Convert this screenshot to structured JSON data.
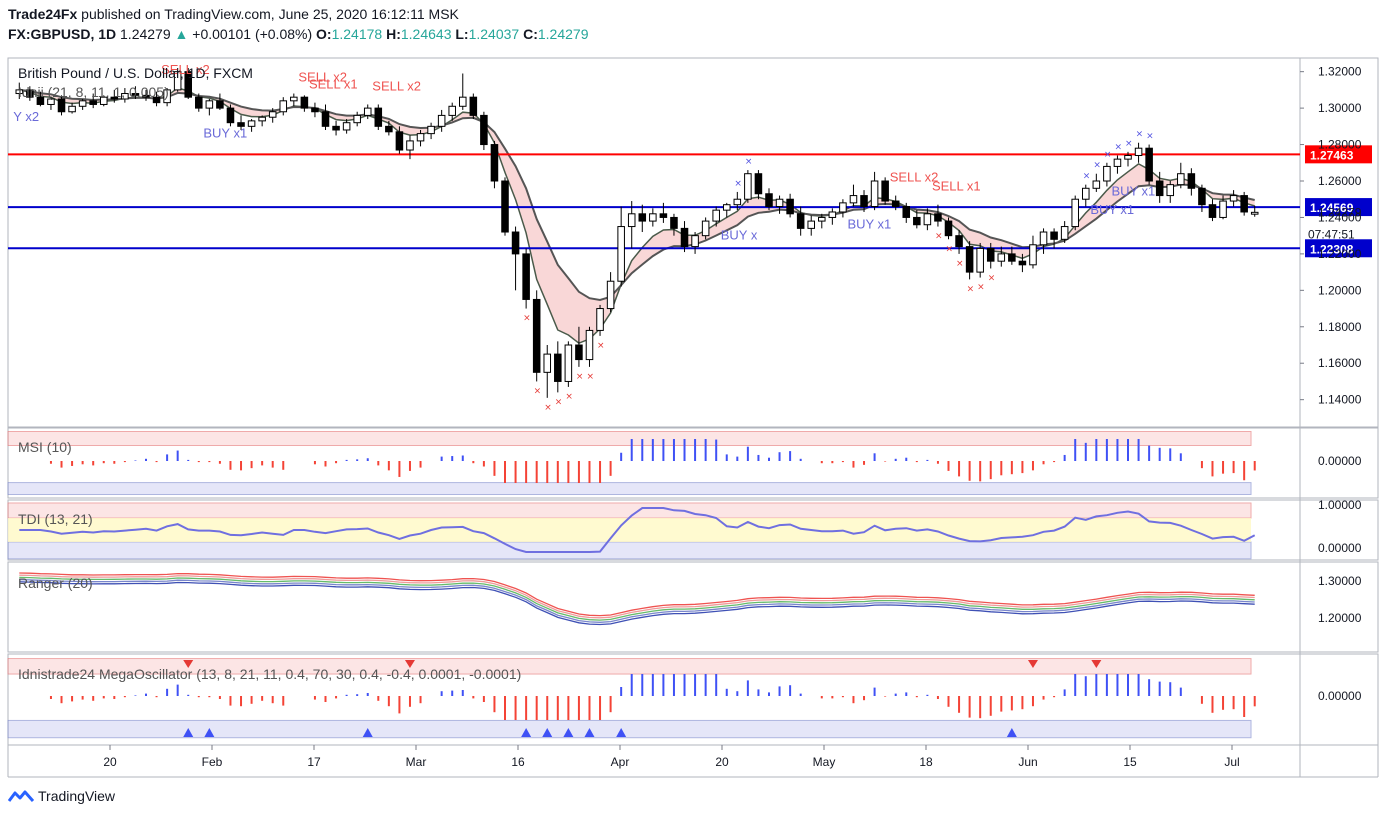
{
  "header": {
    "publisher": "Trade24Fx",
    "published_text": "published on TradingView.com, June 25, 2020 16:12:11 MSK",
    "symbol": "FX:GBPUSD, 1D",
    "last": "1.24279",
    "change": "+0.00101 (+0.08%)",
    "open_label": "O:",
    "open": "1.24178",
    "high_label": "H:",
    "high": "1.24643",
    "low_label": "L:",
    "low": "1.24037",
    "close_label": "C:",
    "close": "1.24279"
  },
  "footer": {
    "brand": "TradingView"
  },
  "colors": {
    "bull": "#ffffff",
    "bear": "#000000",
    "red_line": "#ff0000",
    "blue_line": "#0000cc",
    "sell_text": "#ef5350",
    "buy_text": "#6a6ad8",
    "ribbon_fill_bear": "#f7c6c6",
    "ribbon_fill_bull": "#c8e6c9",
    "ribbon_fill_blue": "#cfd0f5"
  },
  "chart_data": {
    "type": "candlestick",
    "main": {
      "title": "British Pound / U.S. Dollar, 1D, FXCM",
      "indicator_label": "Idnii (21, 8, 11, 1, 0.005)",
      "ylim": [
        1.125,
        1.3275
      ],
      "y_ticks": [
        "1.32000",
        "1.30000",
        "1.28000",
        "1.26000",
        "1.24000",
        "1.22000",
        "1.20000",
        "1.18000",
        "1.16000",
        "1.14000"
      ],
      "x_ticks": [
        "20",
        "Feb",
        "17",
        "Mar",
        "16",
        "Apr",
        "20",
        "May",
        "18",
        "Jun",
        "15",
        "Jul"
      ],
      "horizontal_lines": [
        {
          "value": 1.27463,
          "label": "1.27463",
          "color": "#ff0000"
        },
        {
          "value": 1.24569,
          "label": "1.24569",
          "color": "#0000cc"
        },
        {
          "value": 1.22308,
          "label": "1.22308",
          "color": "#0000cc"
        }
      ],
      "price_label": "1.24279",
      "countdown": "07:47:51",
      "candles": [
        [
          1.308,
          1.314,
          1.305,
          1.31
        ],
        [
          1.31,
          1.312,
          1.304,
          1.306
        ],
        [
          1.306,
          1.309,
          1.301,
          1.302
        ],
        [
          1.302,
          1.306,
          1.299,
          1.305
        ],
        [
          1.305,
          1.307,
          1.296,
          1.298
        ],
        [
          1.298,
          1.303,
          1.297,
          1.301
        ],
        [
          1.301,
          1.305,
          1.299,
          1.304
        ],
        [
          1.304,
          1.308,
          1.3,
          1.302
        ],
        [
          1.302,
          1.307,
          1.301,
          1.306
        ],
        [
          1.306,
          1.31,
          1.303,
          1.305
        ],
        [
          1.305,
          1.311,
          1.303,
          1.308
        ],
        [
          1.308,
          1.312,
          1.305,
          1.307
        ],
        [
          1.307,
          1.31,
          1.304,
          1.306
        ],
        [
          1.306,
          1.309,
          1.301,
          1.303
        ],
        [
          1.303,
          1.311,
          1.301,
          1.31
        ],
        [
          1.31,
          1.322,
          1.309,
          1.32
        ],
        [
          1.32,
          1.322,
          1.305,
          1.306
        ],
        [
          1.306,
          1.308,
          1.298,
          1.3
        ],
        [
          1.3,
          1.305,
          1.296,
          1.304
        ],
        [
          1.304,
          1.308,
          1.299,
          1.3
        ],
        [
          1.3,
          1.302,
          1.29,
          1.292
        ],
        [
          1.292,
          1.296,
          1.288,
          1.29
        ],
        [
          1.29,
          1.294,
          1.287,
          1.293
        ],
        [
          1.293,
          1.296,
          1.29,
          1.295
        ],
        [
          1.295,
          1.3,
          1.292,
          1.298
        ],
        [
          1.298,
          1.306,
          1.296,
          1.304
        ],
        [
          1.304,
          1.308,
          1.301,
          1.306
        ],
        [
          1.306,
          1.307,
          1.298,
          1.3
        ],
        [
          1.3,
          1.303,
          1.295,
          1.298
        ],
        [
          1.298,
          1.302,
          1.288,
          1.29
        ],
        [
          1.29,
          1.293,
          1.285,
          1.288
        ],
        [
          1.288,
          1.294,
          1.286,
          1.292
        ],
        [
          1.292,
          1.298,
          1.29,
          1.296
        ],
        [
          1.296,
          1.302,
          1.294,
          1.3
        ],
        [
          1.3,
          1.302,
          1.288,
          1.29
        ],
        [
          1.29,
          1.293,
          1.285,
          1.287
        ],
        [
          1.287,
          1.29,
          1.275,
          1.277
        ],
        [
          1.277,
          1.285,
          1.272,
          1.282
        ],
        [
          1.282,
          1.288,
          1.279,
          1.286
        ],
        [
          1.286,
          1.292,
          1.283,
          1.29
        ],
        [
          1.29,
          1.299,
          1.287,
          1.296
        ],
        [
          1.296,
          1.303,
          1.293,
          1.301
        ],
        [
          1.301,
          1.319,
          1.299,
          1.306
        ],
        [
          1.306,
          1.308,
          1.294,
          1.296
        ],
        [
          1.296,
          1.298,
          1.277,
          1.28
        ],
        [
          1.28,
          1.282,
          1.256,
          1.26
        ],
        [
          1.26,
          1.262,
          1.23,
          1.232
        ],
        [
          1.232,
          1.235,
          1.2,
          1.22
        ],
        [
          1.22,
          1.223,
          1.19,
          1.195
        ],
        [
          1.195,
          1.2,
          1.15,
          1.155
        ],
        [
          1.155,
          1.17,
          1.141,
          1.165
        ],
        [
          1.165,
          1.172,
          1.144,
          1.15
        ],
        [
          1.15,
          1.172,
          1.147,
          1.17
        ],
        [
          1.17,
          1.18,
          1.158,
          1.162
        ],
        [
          1.162,
          1.18,
          1.158,
          1.178
        ],
        [
          1.178,
          1.192,
          1.175,
          1.19
        ],
        [
          1.19,
          1.21,
          1.188,
          1.205
        ],
        [
          1.205,
          1.246,
          1.202,
          1.235
        ],
        [
          1.235,
          1.249,
          1.223,
          1.242
        ],
        [
          1.242,
          1.247,
          1.232,
          1.238
        ],
        [
          1.238,
          1.245,
          1.235,
          1.242
        ],
        [
          1.242,
          1.248,
          1.237,
          1.24
        ],
        [
          1.24,
          1.242,
          1.23,
          1.234
        ],
        [
          1.234,
          1.238,
          1.221,
          1.224
        ],
        [
          1.224,
          1.232,
          1.22,
          1.23
        ],
        [
          1.23,
          1.24,
          1.228,
          1.238
        ],
        [
          1.238,
          1.246,
          1.235,
          1.244
        ],
        [
          1.244,
          1.248,
          1.24,
          1.247
        ],
        [
          1.247,
          1.254,
          1.244,
          1.25
        ],
        [
          1.25,
          1.266,
          1.248,
          1.264
        ],
        [
          1.264,
          1.266,
          1.25,
          1.253
        ],
        [
          1.253,
          1.256,
          1.244,
          1.246
        ],
        [
          1.246,
          1.252,
          1.242,
          1.25
        ],
        [
          1.25,
          1.253,
          1.24,
          1.242
        ],
        [
          1.242,
          1.246,
          1.23,
          1.234
        ],
        [
          1.234,
          1.241,
          1.23,
          1.238
        ],
        [
          1.238,
          1.242,
          1.234,
          1.24
        ],
        [
          1.24,
          1.245,
          1.236,
          1.243
        ],
        [
          1.243,
          1.25,
          1.24,
          1.248
        ],
        [
          1.248,
          1.258,
          1.246,
          1.252
        ],
        [
          1.252,
          1.255,
          1.243,
          1.246
        ],
        [
          1.246,
          1.265,
          1.244,
          1.26
        ],
        [
          1.26,
          1.262,
          1.247,
          1.249
        ],
        [
          1.249,
          1.252,
          1.244,
          1.246
        ],
        [
          1.246,
          1.248,
          1.237,
          1.24
        ],
        [
          1.24,
          1.244,
          1.234,
          1.236
        ],
        [
          1.236,
          1.245,
          1.233,
          1.242
        ],
        [
          1.242,
          1.247,
          1.235,
          1.238
        ],
        [
          1.238,
          1.24,
          1.228,
          1.23
        ],
        [
          1.23,
          1.233,
          1.22,
          1.224
        ],
        [
          1.224,
          1.227,
          1.206,
          1.21
        ],
        [
          1.21,
          1.226,
          1.207,
          1.223
        ],
        [
          1.223,
          1.226,
          1.212,
          1.216
        ],
        [
          1.216,
          1.224,
          1.213,
          1.22
        ],
        [
          1.22,
          1.224,
          1.214,
          1.216
        ],
        [
          1.216,
          1.22,
          1.21,
          1.214
        ],
        [
          1.214,
          1.23,
          1.212,
          1.225
        ],
        [
          1.225,
          1.234,
          1.22,
          1.232
        ],
        [
          1.232,
          1.234,
          1.223,
          1.228
        ],
        [
          1.228,
          1.238,
          1.226,
          1.235
        ],
        [
          1.235,
          1.252,
          1.233,
          1.25
        ],
        [
          1.25,
          1.258,
          1.246,
          1.256
        ],
        [
          1.256,
          1.264,
          1.254,
          1.26
        ],
        [
          1.26,
          1.27,
          1.257,
          1.268
        ],
        [
          1.268,
          1.274,
          1.264,
          1.272
        ],
        [
          1.272,
          1.276,
          1.268,
          1.274
        ],
        [
          1.274,
          1.281,
          1.27,
          1.278
        ],
        [
          1.278,
          1.28,
          1.258,
          1.26
        ],
        [
          1.26,
          1.265,
          1.248,
          1.252
        ],
        [
          1.252,
          1.26,
          1.248,
          1.258
        ],
        [
          1.258,
          1.27,
          1.256,
          1.264
        ],
        [
          1.264,
          1.267,
          1.252,
          1.256
        ],
        [
          1.256,
          1.258,
          1.243,
          1.247
        ],
        [
          1.247,
          1.25,
          1.238,
          1.24
        ],
        [
          1.24,
          1.252,
          1.239,
          1.249
        ],
        [
          1.249,
          1.255,
          1.246,
          1.252
        ],
        [
          1.252,
          1.254,
          1.241,
          1.243
        ],
        [
          1.2418,
          1.2464,
          1.2404,
          1.2428
        ]
      ]
    },
    "panes": [
      {
        "label": "MSI (10)",
        "tick": "0.00000"
      },
      {
        "label": "TDI (13, 21)",
        "ticks": [
          "1.00000",
          "0.00000"
        ]
      },
      {
        "label": "Ranger (20)",
        "ticks": [
          "1.30000",
          "1.20000"
        ]
      },
      {
        "label": "Idnistrade24 MegaOscillator (13, 8, 21, 11, 0.4, 70, 30, 0.4, -0.4, 0.0001, -0.0001)",
        "tick": "0.00000"
      }
    ],
    "signals": [
      {
        "i": 14,
        "text": "SELL x2"
      },
      {
        "i": 27,
        "text": "SELL x2"
      },
      {
        "i": 28,
        "text": "SELL x1"
      },
      {
        "i": 34,
        "text": "SELL x2"
      },
      {
        "i": 83,
        "text": "SELL x2"
      },
      {
        "i": 87,
        "text": "SELL x1"
      },
      {
        "i": 0,
        "text": "Y x2"
      },
      {
        "i": 18,
        "text": "BUY x1"
      },
      {
        "i": 67,
        "text": "BUY x"
      },
      {
        "i": 79,
        "text": "BUY x1"
      },
      {
        "i": 102,
        "text": "BUY x1"
      },
      {
        "i": 104,
        "text": "BUY x1"
      }
    ]
  }
}
